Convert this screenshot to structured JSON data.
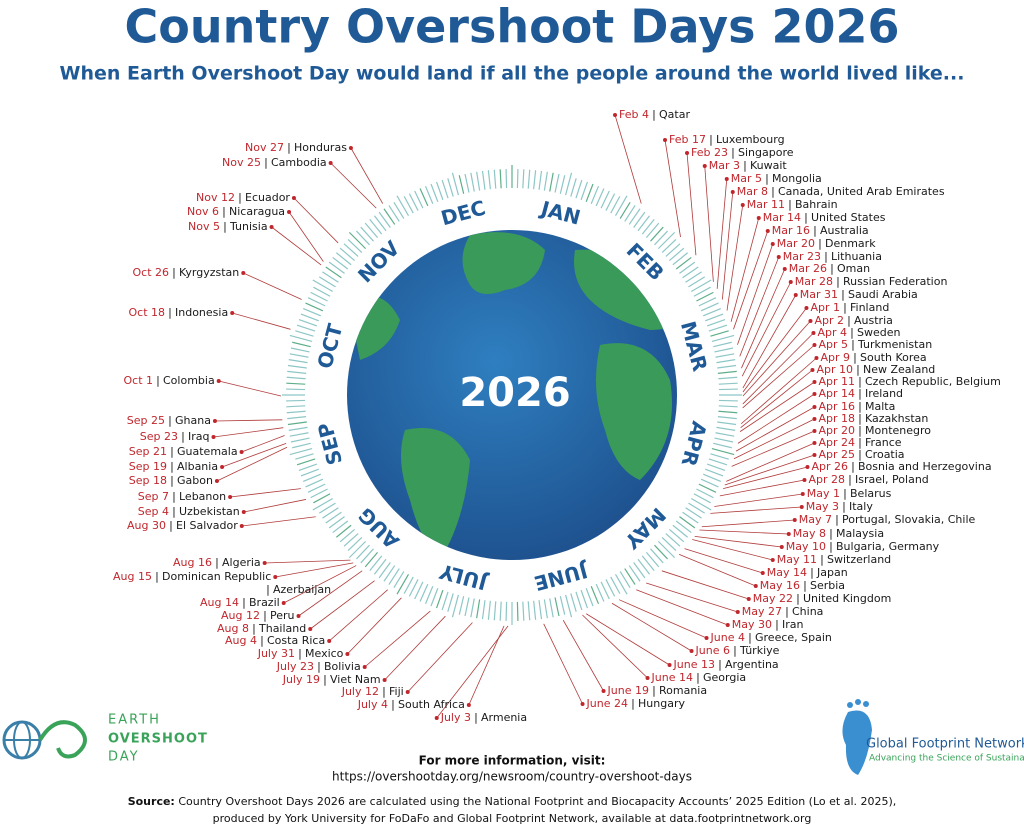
{
  "header": {
    "title": "Country Overshoot Days 2026",
    "subtitle": "When Earth Overshoot Day would land if all the people around the world lived like..."
  },
  "center_year": "2026",
  "months": [
    "JAN",
    "FEB",
    "MAR",
    "APR",
    "MAY",
    "JUNE",
    "JULY",
    "AUG",
    "SEP",
    "OCT",
    "NOV",
    "DEC"
  ],
  "entries": [
    {
      "date": "Feb 4",
      "country": "Qatar"
    },
    {
      "date": "Feb 17",
      "country": "Luxembourg"
    },
    {
      "date": "Feb 23",
      "country": "Singapore"
    },
    {
      "date": "Mar 3",
      "country": "Kuwait"
    },
    {
      "date": "Mar 5",
      "country": "Mongolia"
    },
    {
      "date": "Mar 8",
      "country": "Canada, United Arab Emirates"
    },
    {
      "date": "Mar 11",
      "country": "Bahrain"
    },
    {
      "date": "Mar 14",
      "country": "United States"
    },
    {
      "date": "Mar 16",
      "country": "Australia"
    },
    {
      "date": "Mar 20",
      "country": "Denmark"
    },
    {
      "date": "Mar 23",
      "country": "Lithuania"
    },
    {
      "date": "Mar 26",
      "country": "Oman"
    },
    {
      "date": "Mar 28",
      "country": "Russian Federation"
    },
    {
      "date": "Mar 31",
      "country": "Saudi Arabia"
    },
    {
      "date": "Apr 1",
      "country": "Finland"
    },
    {
      "date": "Apr 2",
      "country": "Austria"
    },
    {
      "date": "Apr 4",
      "country": "Sweden"
    },
    {
      "date": "Apr 5",
      "country": "Turkmenistan"
    },
    {
      "date": "Apr 9",
      "country": "South Korea"
    },
    {
      "date": "Apr 10",
      "country": "New Zealand"
    },
    {
      "date": "Apr 11",
      "country": "Czech Republic, Belgium"
    },
    {
      "date": "Apr 14",
      "country": "Ireland"
    },
    {
      "date": "Apr 16",
      "country": "Malta"
    },
    {
      "date": "Apr 18",
      "country": "Kazakhstan"
    },
    {
      "date": "Apr 20",
      "country": "Montenegro"
    },
    {
      "date": "Apr 24",
      "country": "France"
    },
    {
      "date": "Apr 25",
      "country": "Croatia"
    },
    {
      "date": "Apr 26",
      "country": "Bosnia and Herzegovina"
    },
    {
      "date": "Apr 28",
      "country": "Israel, Poland"
    },
    {
      "date": "May 1",
      "country": "Belarus"
    },
    {
      "date": "May 3",
      "country": "Italy"
    },
    {
      "date": "May 7",
      "country": "Portugal, Slovakia, Chile"
    },
    {
      "date": "May 8",
      "country": "Malaysia"
    },
    {
      "date": "May 10",
      "country": "Bulgaria, Germany"
    },
    {
      "date": "May 11",
      "country": "Switzerland"
    },
    {
      "date": "May 14",
      "country": "Japan"
    },
    {
      "date": "May 16",
      "country": "Serbia"
    },
    {
      "date": "May 22",
      "country": "United Kingdom"
    },
    {
      "date": "May 27",
      "country": "China"
    },
    {
      "date": "May 30",
      "country": "Iran"
    },
    {
      "date": "June 4",
      "country": "Greece, Spain"
    },
    {
      "date": "June 6",
      "country": "Türkiye"
    },
    {
      "date": "June 13",
      "country": "Argentina"
    },
    {
      "date": "June 14",
      "country": "Georgia"
    },
    {
      "date": "June 19",
      "country": "Romania"
    },
    {
      "date": "June 24",
      "country": "Hungary"
    },
    {
      "date": "July 3",
      "country": "Armenia"
    },
    {
      "date": "Nov 27",
      "country": "Honduras"
    },
    {
      "date": "Nov 25",
      "country": "Cambodia"
    },
    {
      "date": "Nov 12",
      "country": "Ecuador"
    },
    {
      "date": "Nov 6",
      "country": "Nicaragua"
    },
    {
      "date": "Nov 5",
      "country": "Tunisia"
    },
    {
      "date": "Oct 26",
      "country": "Kyrgyzstan"
    },
    {
      "date": "Oct 18",
      "country": "Indonesia"
    },
    {
      "date": "Oct 1",
      "country": "Colombia"
    },
    {
      "date": "Sep 25",
      "country": "Ghana"
    },
    {
      "date": "Sep 23",
      "country": "Iraq"
    },
    {
      "date": "Sep 21",
      "country": "Guatemala"
    },
    {
      "date": "Sep 19",
      "country": "Albania"
    },
    {
      "date": "Sep 18",
      "country": "Gabon"
    },
    {
      "date": "Sep 7",
      "country": "Lebanon"
    },
    {
      "date": "Sep 4",
      "country": "Uzbekistan"
    },
    {
      "date": "Aug 30",
      "country": "El Salvador"
    },
    {
      "date": "Aug 16",
      "country": "Algeria"
    },
    {
      "date": "Aug 15",
      "country": "Dominican Republic"
    },
    {
      "country": "Azerbaijan"
    },
    {
      "date": "Aug 14",
      "country": "Brazil"
    },
    {
      "date": "Aug 12",
      "country": "Peru"
    },
    {
      "date": "Aug 8",
      "country": "Thailand"
    },
    {
      "date": "Aug 4",
      "country": "Costa Rica"
    },
    {
      "date": "July 31",
      "country": "Mexico"
    },
    {
      "date": "July 23",
      "country": "Bolivia"
    },
    {
      "date": "July 19",
      "country": "Viet Nam"
    },
    {
      "date": "July 12",
      "country": "Fiji"
    },
    {
      "date": "July 4",
      "country": "South Africa"
    }
  ],
  "logos": {
    "left": [
      "EARTH",
      "OVERSHOOT",
      "DAY"
    ],
    "right": {
      "name": "Global Footprint Network",
      "tagline": "Advancing the Science of Sustainability"
    }
  },
  "footer": {
    "info": "For more information, visit:",
    "url": "https://overshootday.org/newsroom/country-overshoot-days",
    "source_label": "Source:",
    "source_line1": "Country Overshoot Days 2026 are calculated using the National Footprint and Biocapacity Accounts’ 2025 Edition (Lo et al. 2025),",
    "source_line2": "produced by York University for FoDaFo and Global Footprint Network, available at data.footprintnetwork.org"
  }
}
